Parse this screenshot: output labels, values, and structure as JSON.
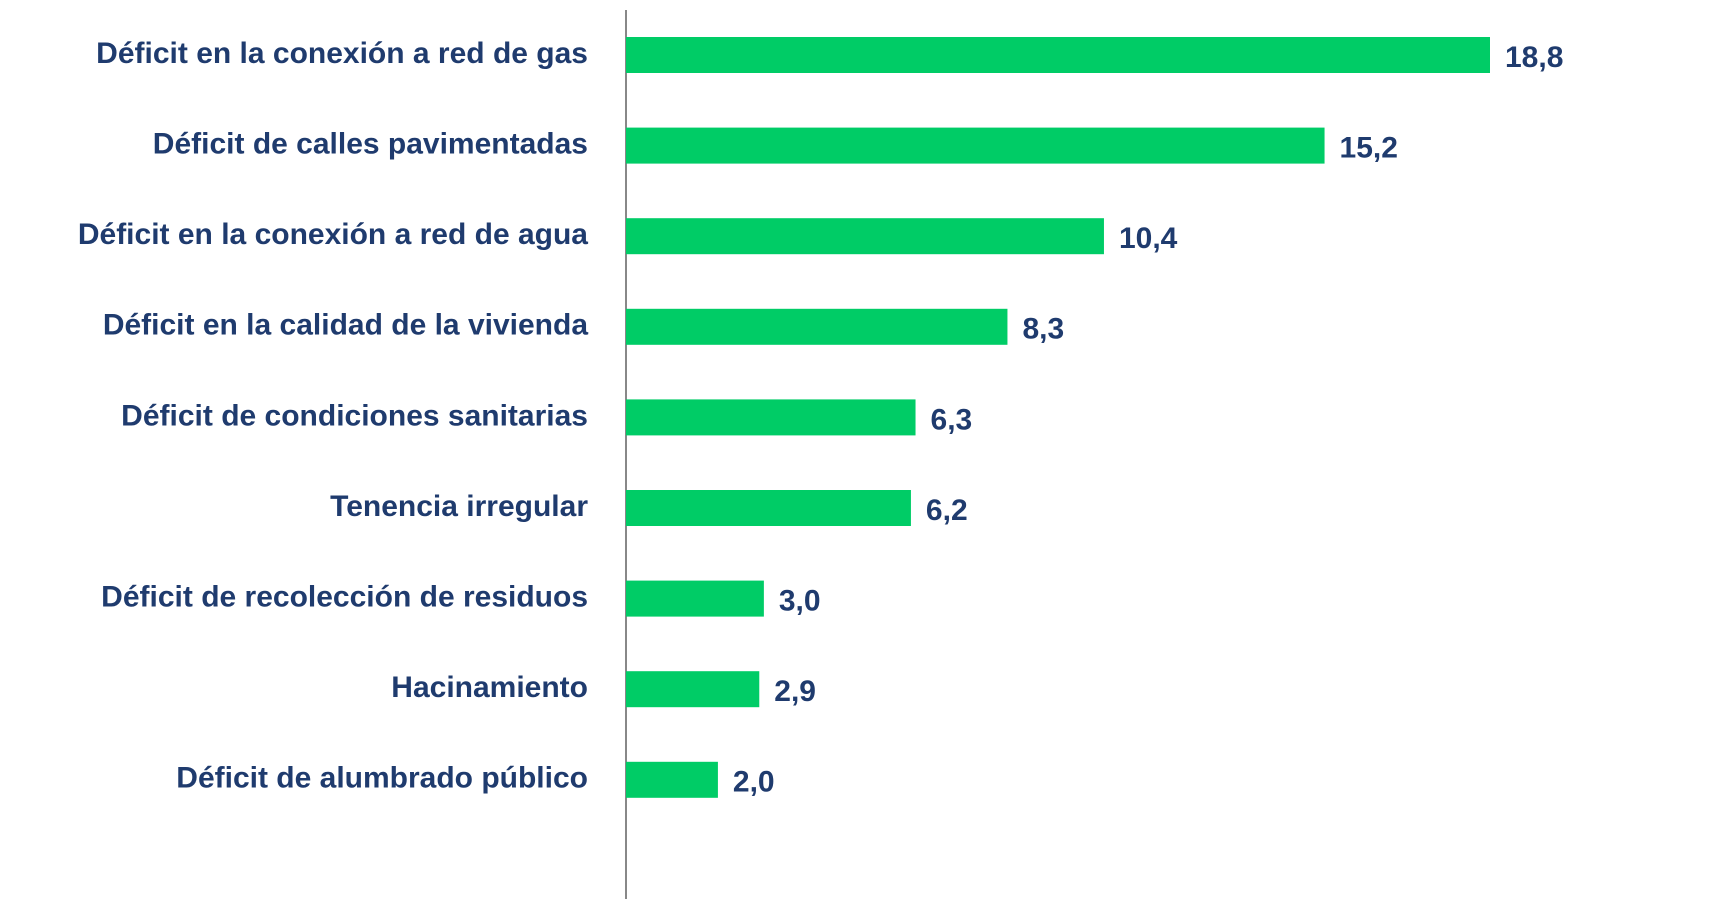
{
  "chart_data": {
    "type": "bar",
    "orientation": "horizontal",
    "categories": [
      "Déficit en la conexión a red de gas",
      "Déficit de calles pavimentadas",
      "Déficit en la conexión a red de agua",
      "Déficit en la calidad de la vivienda",
      "Déficit de condiciones sanitarias",
      "Tenencia irregular",
      "Déficit de recolección de residuos",
      "Hacinamiento",
      "Déficit de alumbrado público"
    ],
    "values": [
      18.8,
      15.2,
      10.4,
      8.3,
      6.3,
      6.2,
      3.0,
      2.9,
      2.0
    ],
    "value_labels": [
      "18,8",
      "15,2",
      "10,4",
      "8,3",
      "6,3",
      "6,2",
      "3,0",
      "2,9",
      "2,0"
    ],
    "color": "#00cc66"
  }
}
